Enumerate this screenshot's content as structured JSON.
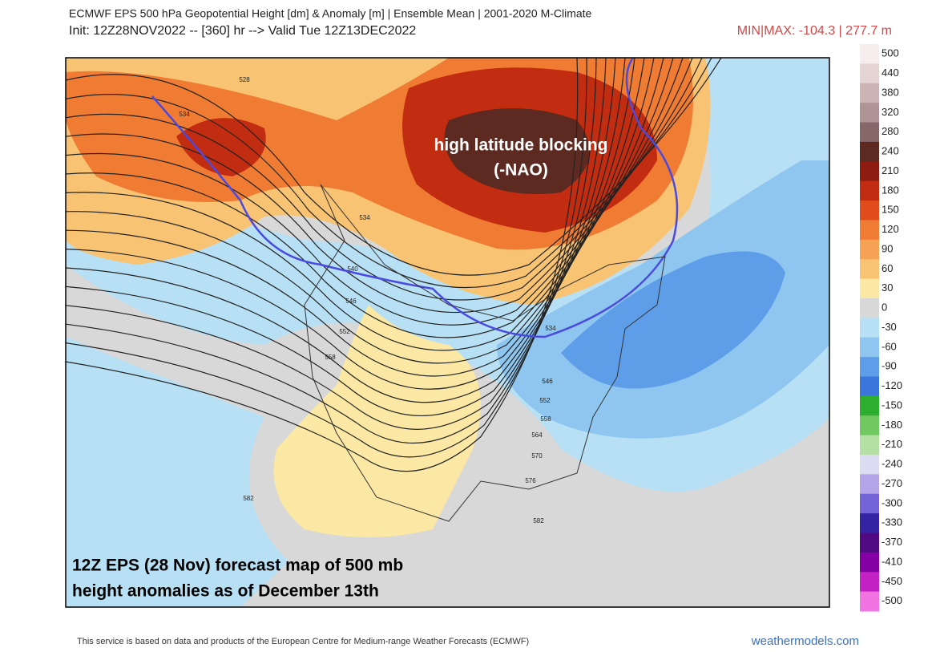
{
  "header": {
    "title": "ECMWF EPS 500 hPa Geopotential Height [dm] & Anomaly [m] | Ensemble Mean | 2001-2020 M-Climate",
    "subtitle": "Init: 12Z28NOV2022 -- [360] hr --> Valid Tue 12Z13DEC2022",
    "minmax": "MIN|MAX: -104.3 | 277.7 m"
  },
  "map": {
    "annotations": [
      "high latitude blocking",
      "(-NAO)",
      "12Z EPS (28 Nov) forecast map of 500 mb",
      "height anomalies as of December 13th"
    ],
    "contour_labels": [
      "528",
      "534",
      "534",
      "540",
      "546",
      "552",
      "558",
      "534",
      "546",
      "552",
      "558",
      "564",
      "570",
      "576",
      "582",
      "582"
    ]
  },
  "legend": {
    "labels": [
      500,
      440,
      380,
      320,
      280,
      240,
      210,
      180,
      150,
      120,
      90,
      60,
      30,
      0,
      -30,
      -60,
      -90,
      -120,
      -150,
      -180,
      -210,
      -240,
      -270,
      -300,
      -330,
      -370,
      -410,
      -450,
      -500
    ],
    "colors": [
      "#f6eeee",
      "#e4d4d4",
      "#ccb4b4",
      "#ae9494",
      "#876868",
      "#5c2a20",
      "#8e1c10",
      "#c22c10",
      "#e04c1c",
      "#f07c34",
      "#f5a254",
      "#f8c474",
      "#fbe8a4",
      "#d8d8d8",
      "#b8e0f5",
      "#8ec6f0",
      "#5e9ee8",
      "#3a76dc",
      "#2eae2e",
      "#70c860",
      "#b4e0a4",
      "#dcdcf2",
      "#b4a4e8",
      "#7464d8",
      "#3424a4",
      "#520a84",
      "#8400a4",
      "#c422c4",
      "#f274e2"
    ]
  },
  "footer": {
    "credit": "This service is based on data and products of the European Centre for Medium-range Weather Forecasts (ECMWF)",
    "site": "weathermodels.com"
  }
}
